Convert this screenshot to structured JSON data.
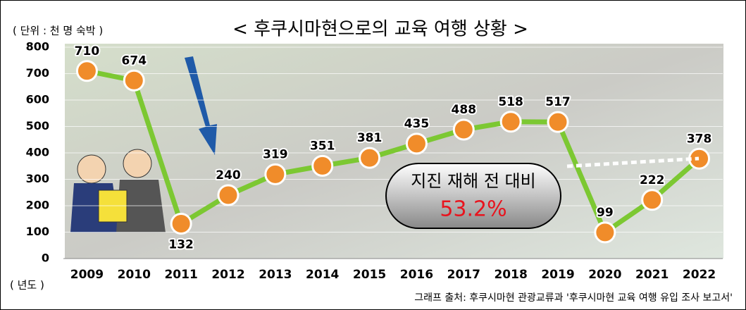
{
  "chart_data": {
    "type": "line",
    "title": "< 후쿠시마현으로의 교육 여행 상황 >",
    "unit_label": "( 단위 : 천 명 숙박 )",
    "x_label": "( 년도 )",
    "source": "그래프 출처: 후쿠시마현 관광교류과 '후쿠시마현 교육 여행 유입 조사 보고서'",
    "annotation": "지진 재해 전 대비",
    "annotation_value": "53.2%",
    "categories": [
      "2009",
      "2010",
      "2011",
      "2012",
      "2013",
      "2014",
      "2015",
      "2016",
      "2017",
      "2018",
      "2019",
      "2020",
      "2021",
      "2022"
    ],
    "series": [
      {
        "name": "교육 여행",
        "color": "#7cc832",
        "marker_color": "#f08c2a",
        "values": [
          710,
          674,
          132,
          240,
          319,
          351,
          381,
          435,
          488,
          518,
          517,
          99,
          222,
          378
        ]
      }
    ],
    "ylim": [
      0,
      800
    ],
    "yticks": [
      0,
      100,
      200,
      300,
      400,
      500,
      600,
      700,
      800
    ],
    "grid": true
  }
}
